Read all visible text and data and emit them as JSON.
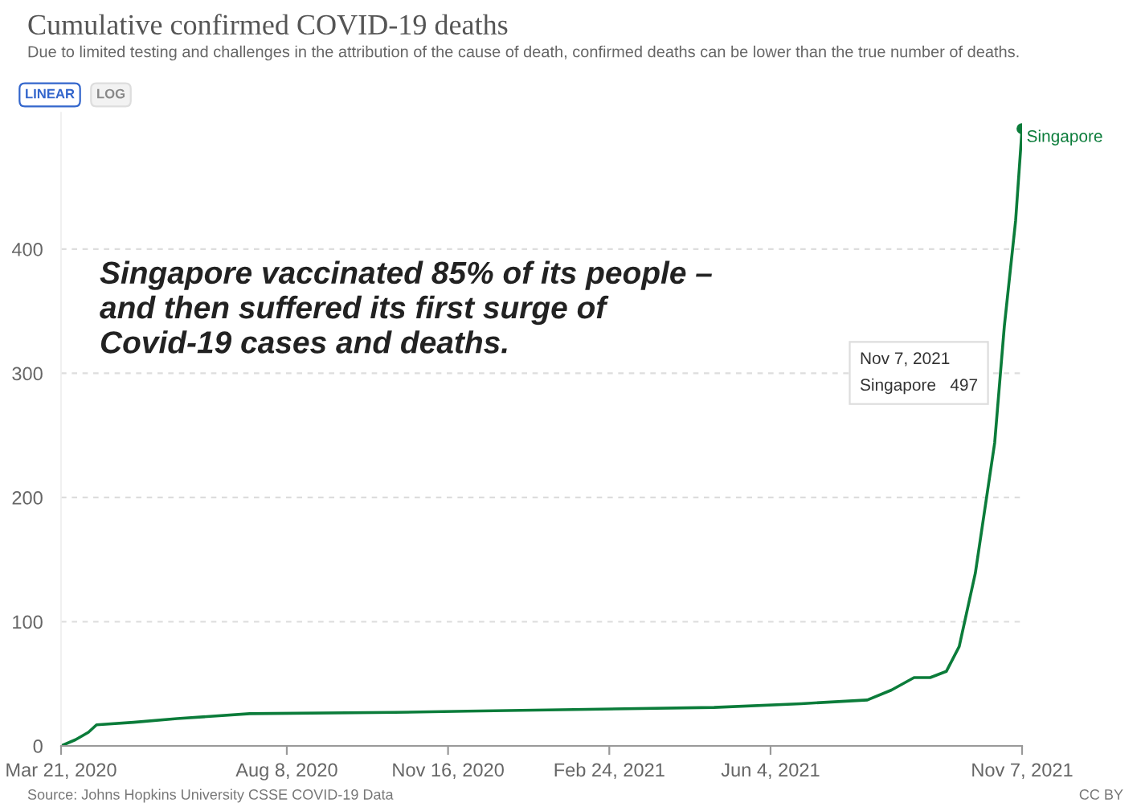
{
  "chart_data": {
    "type": "line",
    "title": "Cumulative confirmed COVID-19 deaths",
    "subtitle": "Due to limited testing and challenges in the attribution of the cause of death, confirmed deaths can be lower than the true number of deaths.",
    "x": [
      "2020-03-21",
      "2020-03-30",
      "2020-04-07",
      "2020-04-12",
      "2020-05-05",
      "2020-06-01",
      "2020-07-16",
      "2020-10-14",
      "2020-11-28",
      "2021-01-17",
      "2021-04-30",
      "2021-06-23",
      "2021-08-03",
      "2021-08-18",
      "2021-09-01",
      "2021-09-11",
      "2021-09-21",
      "2021-09-29",
      "2021-10-09",
      "2021-10-21",
      "2021-10-27",
      "2021-11-03",
      "2021-11-07"
    ],
    "series": [
      {
        "name": "Singapore",
        "color": "#0b7c3a",
        "values": [
          0,
          5,
          11,
          17,
          19,
          22,
          26,
          27,
          28,
          29,
          31,
          34,
          37,
          45,
          55,
          55,
          60,
          80,
          139,
          244,
          338,
          423,
          497
        ]
      }
    ],
    "xlim": [
      "2020-03-21",
      "2021-11-07"
    ],
    "xticks": [
      {
        "value": "2020-03-21",
        "label": "Mar 21, 2020"
      },
      {
        "value": "2020-08-08",
        "label": "Aug 8, 2020"
      },
      {
        "value": "2020-11-16",
        "label": "Nov 16, 2020"
      },
      {
        "value": "2021-02-24",
        "label": "Feb 24, 2021"
      },
      {
        "value": "2021-06-04",
        "label": "Jun 4, 2021"
      },
      {
        "value": "2021-11-07",
        "label": "Nov 7, 2021"
      }
    ],
    "ylim": [
      0,
      510
    ],
    "yticks": [
      0,
      100,
      200,
      300,
      400
    ],
    "grid": "y",
    "legend": false,
    "marker": "none",
    "line_style": "solid",
    "annotations": [
      "LINEAR",
      "LOG",
      "Singapore vaccinated 85% of its people –\nand then suffered its first surge of\nCovid-19 cases and deaths.",
      "Nov 7, 2021\nSingapore   497",
      "Source: Johns Hopkins University CSSE COVID-19 Data",
      "CC BY"
    ]
  }
}
